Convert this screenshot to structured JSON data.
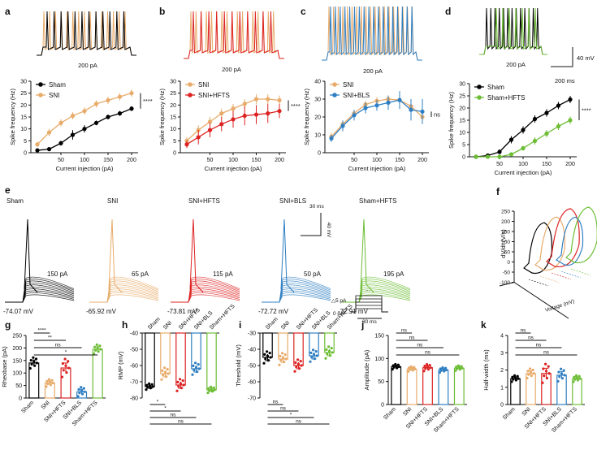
{
  "colors": {
    "sham": "#000000",
    "sni": "#e8ab6a",
    "hfts": "#dd2222",
    "bls": "#2f7fc2",
    "shamHfts": "#6dbd35"
  },
  "panels": {
    "a": "a",
    "b": "b",
    "c": "c",
    "d": "d",
    "e": "e",
    "f": "f",
    "g": "g",
    "h": "h",
    "i": "i",
    "j": "j",
    "k": "k"
  },
  "traces": {
    "a": {
      "current": "200 pA"
    },
    "b": {
      "current": "200 pA"
    },
    "c": {
      "current": "200 pA"
    },
    "d": {
      "current": "200 pA"
    },
    "scale_v": "40 mV",
    "scale_t": "200 ms"
  },
  "chart_data": [
    {
      "panel": "a",
      "type": "line",
      "xlabel": "Current injection (pA)",
      "ylabel": "Spike frequency (Hz)",
      "x": [
        0,
        25,
        50,
        75,
        100,
        125,
        150,
        175,
        200
      ],
      "xticks": [
        "50",
        "100",
        "150",
        "200"
      ],
      "xtickvals": [
        50,
        100,
        150,
        200
      ],
      "ylim": [
        0,
        30
      ],
      "yticks": [
        "0",
        "5",
        "10",
        "15",
        "20",
        "25",
        "30"
      ],
      "yticksvals": [
        0,
        5,
        10,
        15,
        20,
        25,
        30
      ],
      "series": [
        {
          "name": "Sham",
          "key": "sham",
          "values": [
            1,
            1.5,
            4,
            7.5,
            10,
            12.5,
            15,
            16.5,
            18.5
          ],
          "errors": [
            0.5,
            0.8,
            1,
            2,
            1.5,
            1,
            1,
            1,
            1
          ]
        },
        {
          "name": "SNI",
          "key": "sni",
          "values": [
            3.5,
            8.5,
            12.5,
            15.5,
            17.5,
            20.5,
            22,
            23.5,
            25
          ],
          "errors": [
            1,
            1.5,
            1.5,
            1.5,
            1.5,
            1.5,
            1.5,
            1.5,
            1.5
          ]
        }
      ],
      "sig": "****"
    },
    {
      "panel": "b",
      "type": "line",
      "xlabel": "Current injection (pA)",
      "ylabel": "Spike frequency (Hz)",
      "x": [
        0,
        25,
        50,
        75,
        100,
        125,
        150,
        175,
        200
      ],
      "xticks": [
        "50",
        "100",
        "150",
        "200"
      ],
      "xtickvals": [
        50,
        100,
        150,
        200
      ],
      "ylim": [
        0,
        30
      ],
      "yticks": [
        "0",
        "5",
        "10",
        "15",
        "20",
        "25",
        "30"
      ],
      "yticksvals": [
        0,
        5,
        10,
        15,
        20,
        25,
        30
      ],
      "series": [
        {
          "name": "SNI",
          "key": "sni",
          "values": [
            5,
            9.5,
            13,
            16.5,
            18.5,
            20.5,
            22.5,
            22.5,
            22
          ],
          "errors": [
            1.5,
            2,
            2,
            2,
            2,
            2,
            2,
            2,
            2
          ]
        },
        {
          "name": "SNI+HFTS",
          "key": "hfts",
          "values": [
            3.5,
            6.5,
            9.5,
            12,
            14,
            15.5,
            16,
            16.5,
            17.5
          ],
          "errors": [
            1.5,
            3,
            3,
            3,
            3.5,
            4,
            4,
            4,
            3
          ]
        }
      ],
      "sig": "****"
    },
    {
      "panel": "c",
      "type": "line",
      "xlabel": "Current injection (pA)",
      "ylabel": "Spike frequency (Hz)",
      "x": [
        0,
        25,
        50,
        75,
        100,
        125,
        150,
        175,
        200
      ],
      "xticks": [
        "50",
        "100",
        "150",
        "200"
      ],
      "xtickvals": [
        50,
        100,
        150,
        200
      ],
      "ylim": [
        0,
        40
      ],
      "yticks": [
        "0",
        "10",
        "20",
        "30",
        "40"
      ],
      "yticksvals": [
        0,
        10,
        20,
        30,
        40
      ],
      "series": [
        {
          "name": "SNI",
          "key": "sni",
          "values": [
            9,
            16,
            22,
            27,
            29,
            30,
            29.5,
            26,
            20
          ],
          "errors": [
            2,
            2,
            2,
            2,
            2,
            2,
            2,
            3,
            4
          ]
        },
        {
          "name": "SNI+BLS",
          "key": "bls",
          "values": [
            8,
            15,
            21,
            25,
            26.5,
            28,
            29.5,
            24,
            23
          ],
          "errors": [
            2,
            3,
            3,
            3,
            3,
            4,
            5,
            6,
            7
          ]
        }
      ],
      "sig": "ns"
    },
    {
      "panel": "d",
      "type": "line",
      "xlabel": "Current injection (pA)",
      "ylabel": "Spike frequency (Hz)",
      "x": [
        0,
        25,
        50,
        75,
        100,
        125,
        150,
        175,
        200
      ],
      "xticks": [
        "50",
        "100",
        "150",
        "200"
      ],
      "xtickvals": [
        50,
        100,
        150,
        200
      ],
      "ylim": [
        0,
        30
      ],
      "yticks": [
        "0",
        "5",
        "10",
        "15",
        "20",
        "25",
        "30"
      ],
      "yticksvals": [
        0,
        5,
        10,
        15,
        20,
        25,
        30
      ],
      "series": [
        {
          "name": "Sham",
          "key": "sham",
          "values": [
            0,
            0.5,
            2,
            7,
            11,
            15.5,
            18,
            21,
            23.5
          ],
          "errors": [
            0,
            0.3,
            1,
            1.5,
            1.5,
            1.5,
            1.5,
            1.5,
            1.5
          ]
        },
        {
          "name": "Sham+HFTS",
          "key": "shamHfts",
          "values": [
            0,
            0,
            0,
            1,
            3.5,
            6.5,
            9.5,
            12.5,
            15
          ],
          "errors": [
            0,
            0,
            0,
            0.5,
            1,
            1.5,
            1.5,
            1.5,
            1.5
          ]
        }
      ],
      "sig": "****"
    },
    {
      "panel": "g",
      "type": "bar",
      "ylabel": "Rheobase (pA)",
      "categories": [
        "Sham",
        "SNI",
        "SNI+HFTS",
        "SNI+BLS",
        "Sham+HFTS"
      ],
      "keys": [
        "sham",
        "sni",
        "hfts",
        "bls",
        "shamHfts"
      ],
      "values": [
        140,
        60,
        120,
        25,
        195
      ],
      "errors": [
        12,
        8,
        20,
        10,
        10
      ],
      "ylim": [
        0,
        250
      ],
      "yticks": [
        "0",
        "50",
        "100",
        "150",
        "200",
        "250"
      ],
      "yticksvals": [
        0,
        50,
        100,
        150,
        200,
        250
      ],
      "sigs": [
        "****",
        "**",
        "ns",
        "*"
      ]
    },
    {
      "panel": "h",
      "type": "bar",
      "ylabel": "RMP (mV)",
      "categories": [
        "Sham",
        "SNI",
        "SNI+HFTS",
        "SNI+BLS",
        "Sham+HFTS"
      ],
      "keys": [
        "sham",
        "sni",
        "hfts",
        "bls",
        "shamHfts"
      ],
      "values": [
        -73,
        -65,
        -72,
        -62,
        -75
      ],
      "errors": [
        1,
        2,
        2,
        2,
        1
      ],
      "ylim": [
        -80,
        -40
      ],
      "yticks": [
        "-80",
        "-70",
        "-60",
        "-50",
        "-40"
      ],
      "yticksvals": [
        -80,
        -70,
        -60,
        -50,
        -40
      ],
      "sigs": [
        "*",
        "*",
        "ns",
        "ns"
      ]
    },
    {
      "panel": "i",
      "type": "bar",
      "ylabel": "Threshold (mV)",
      "categories": [
        "Sham",
        "SNI",
        "SNI+HFTS",
        "SNI+BLS",
        "Sham+HFTS"
      ],
      "keys": [
        "sham",
        "sni",
        "hfts",
        "bls",
        "shamHfts"
      ],
      "values": [
        -45,
        -46,
        -50,
        -44,
        -42
      ],
      "errors": [
        2,
        2,
        2,
        2,
        2
      ],
      "ylim": [
        -70,
        -30
      ],
      "yticks": [
        "-70",
        "-60",
        "-50",
        "-40",
        "-30"
      ],
      "yticksvals": [
        -70,
        -60,
        -50,
        -40,
        -30
      ],
      "sigs": [
        "ns",
        "ns",
        "*",
        "ns"
      ]
    },
    {
      "panel": "j",
      "type": "bar",
      "ylabel": "Amplitude (pA)",
      "categories": [
        "Sham",
        "SNI",
        "SNI+HFTS",
        "SNI+BLS",
        "Sham+HFTS"
      ],
      "keys": [
        "sham",
        "sni",
        "hfts",
        "bls",
        "shamHfts"
      ],
      "values": [
        82,
        77,
        80,
        75,
        79
      ],
      "errors": [
        3,
        3,
        4,
        3,
        3
      ],
      "ylim": [
        0,
        150
      ],
      "yticks": [
        "0",
        "50",
        "100",
        "150"
      ],
      "yticksvals": [
        0,
        50,
        100,
        150
      ],
      "sigs": [
        "ns",
        "ns",
        "ns",
        "ns"
      ]
    },
    {
      "panel": "k",
      "type": "bar",
      "ylabel": "Half-width (ms)",
      "categories": [
        "Sham",
        "SNI",
        "SNI+HFTS",
        "SNI+BLS",
        "Sham+HFTS"
      ],
      "keys": [
        "sham",
        "sni",
        "hfts",
        "bls",
        "shamHfts"
      ],
      "values": [
        1.5,
        1.8,
        1.8,
        1.7,
        1.5
      ],
      "errors": [
        0.1,
        0.15,
        0.3,
        0.2,
        0.1
      ],
      "ylim": [
        0,
        4
      ],
      "yticks": [
        "0",
        "1",
        "2",
        "3",
        "4"
      ],
      "yticksvals": [
        0,
        1,
        2,
        3,
        4
      ],
      "sigs": [
        "ns",
        "ns",
        "ns",
        "ns"
      ]
    }
  ],
  "panel_e": {
    "conditions": [
      {
        "name": "Sham",
        "key": "sham",
        "current": "150 pA",
        "vrest": "-74.07 mV"
      },
      {
        "name": "SNI",
        "key": "sni",
        "current": "65 pA",
        "vrest": "-65.92 mV"
      },
      {
        "name": "SNI+HFTS",
        "key": "hfts",
        "current": "115 pA",
        "vrest": "-73.81 mV"
      },
      {
        "name": "SNI+BLS",
        "key": "bls",
        "current": "50 pA",
        "vrest": "-72.72 mV"
      },
      {
        "name": "Sham+HFTS",
        "key": "shamHfts",
        "current": "195 pA",
        "vrest": "-72.91 mV"
      }
    ],
    "scale_t": "30 ms",
    "scale_v": "40 mV",
    "step_label": "△5 pA",
    "zero_label": "0 pA",
    "step_time": "30 ms",
    "dots": "..."
  },
  "panel_f": {
    "ylabel": "dV/dt (V/s)",
    "yticks": [
      "250",
      "200",
      "150",
      "100",
      "50",
      "0",
      "-50",
      "-100"
    ],
    "xlabel": "Voltage (mV)"
  }
}
